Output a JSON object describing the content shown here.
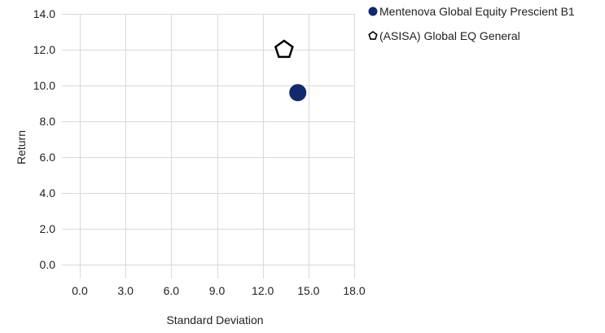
{
  "chart_data": {
    "type": "scatter",
    "title": "",
    "xlabel": "Standard Deviation",
    "ylabel": "Return",
    "xlim": [
      0,
      18
    ],
    "ylim": [
      0,
      14
    ],
    "x_ticks": [
      0,
      3,
      6,
      9,
      12,
      15,
      18
    ],
    "y_ticks": [
      0,
      2,
      4,
      6,
      8,
      10,
      12,
      14
    ],
    "tick_decimals": 1,
    "grid": true,
    "legend_position": "top-right",
    "series": [
      {
        "name": "Mentenova Global Equity Prescient B1",
        "marker": "circle",
        "color": "#13296b",
        "filled": true,
        "points": [
          {
            "x": 14.3,
            "y": 9.6
          }
        ]
      },
      {
        "name": "(ASISA) Global EQ General",
        "marker": "pentagon",
        "color": "#000000",
        "filled": false,
        "points": [
          {
            "x": 13.4,
            "y": 12.0
          }
        ]
      }
    ]
  }
}
